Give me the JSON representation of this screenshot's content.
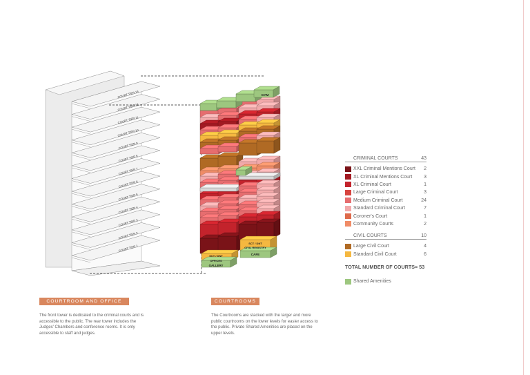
{
  "tower_labels": [
    "COURT TIER 13",
    "COURT TIER 12",
    "COURT TIER 11",
    "COURT TIER 10",
    "COURT TIER 9",
    "COURT TIER 8",
    "COURT TIER 7",
    "COURT TIER 6",
    "COURT TIER 5",
    "COURT TIER 4",
    "COURT TIER 3",
    "COURT TIER 2",
    "COURT TIER 1"
  ],
  "block_labels": {
    "gym": "GYM",
    "sct_left": "SCT / DNT",
    "offices_left": "OFFICES",
    "gallery": "GALLERY",
    "sct_right": "SCT / DNT",
    "civil_registry": "CIVIL REGISTRY",
    "cafe": "CAFE"
  },
  "legend": {
    "criminal_title": "CRIMINAL COURTS",
    "criminal_total": "43",
    "criminal": [
      {
        "label": "XXL Criminal Mentions Court",
        "count": "2",
        "color": "#7a1318"
      },
      {
        "label": "XL Criminal Mentions Court",
        "count": "3",
        "color": "#a31a22"
      },
      {
        "label": "XL Criminal Court",
        "count": "1",
        "color": "#c3232c"
      },
      {
        "label": "Large Criminal Court",
        "count": "3",
        "color": "#d7443f"
      },
      {
        "label": "Medium Criminal Court",
        "count": "24",
        "color": "#e66d6f"
      },
      {
        "label": "Standard Criminal Court",
        "count": "7",
        "color": "#f2a9aa"
      },
      {
        "label": "Coroner's Court",
        "count": "1",
        "color": "#de6a4b"
      },
      {
        "label": "Community Courts",
        "count": "2",
        "color": "#f08c67"
      }
    ],
    "civil_title": "CIVIL COURTS",
    "civil_total": "10",
    "civil": [
      {
        "label": "Large Civil Court",
        "count": "4",
        "color": "#b06a24"
      },
      {
        "label": "Standard Civil Court",
        "count": "6",
        "color": "#f5b840"
      }
    ],
    "total": "TOTAL NUMBER OF COURTS= 53",
    "amenities_label": "Shared Amenities",
    "amenities_color": "#9dc77f"
  },
  "sections": {
    "left_header": "COURTROOM AND OFFICE",
    "left_text": "The front tower is dedicated to the criminal courts and is accessible to the public. The rear tower includes the Judges' Chambers and conference rooms. It is only accessible to staff and judges.",
    "right_header": "COURTROOMS",
    "right_text": "The Courtrooms are stacked with the larger and more public courtrooms on the lower levels for easier access to the public. Private Shared Amenities are placed on the upper levels."
  },
  "colors": {
    "accent": "#d9875e"
  }
}
